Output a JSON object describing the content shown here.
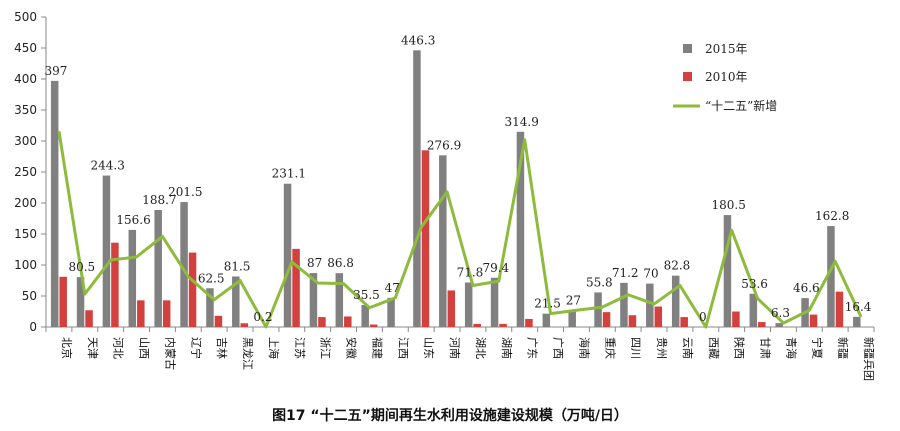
{
  "caption": "图17 “十二五”期间再生水利用设施建设规模（万吨/日）",
  "chart_data": {
    "type": "bar",
    "title": "图17 “十二五”期间再生水利用设施建设规模（万吨/日）",
    "xlabel": "",
    "ylabel": "",
    "ylim": [
      0,
      500
    ],
    "yticks": [
      0,
      50,
      100,
      150,
      200,
      250,
      300,
      350,
      400,
      450,
      500
    ],
    "grid": false,
    "legend": "top-right",
    "categories": [
      "北京",
      "天津",
      "河北",
      "山西",
      "内蒙古",
      "辽宁",
      "吉林",
      "黑龙江",
      "上海",
      "江苏",
      "浙江",
      "安徽",
      "福建",
      "江西",
      "山东",
      "河南",
      "湖北",
      "湖南",
      "广东",
      "广西",
      "海南",
      "重庆",
      "四川",
      "贵州",
      "云南",
      "西藏",
      "陕西",
      "甘肃",
      "青海",
      "宁夏",
      "新疆",
      "新疆兵团"
    ],
    "series": [
      {
        "name": "2015年",
        "type": "bar",
        "color": "#808080",
        "values": [
          397,
          80.5,
          244.3,
          156.6,
          188.7,
          201.5,
          62.5,
          81.5,
          0.2,
          231.1,
          87,
          86.8,
          35.5,
          47,
          446.3,
          276.9,
          71.8,
          79.4,
          314.9,
          21.5,
          27,
          55.8,
          71.2,
          70,
          82.8,
          0,
          180.5,
          53.6,
          6.3,
          46.6,
          162.8,
          16.4
        ],
        "labels": [
          "397",
          "80.5",
          "244.3",
          "156.6",
          "188.7",
          "201.5",
          "62.5",
          "81.5",
          "0.2",
          "231.1",
          "87",
          "86.8",
          "35.5",
          "47",
          "446.3",
          "276.9",
          "71.8",
          "79.4",
          "314.9",
          "21.5",
          "27",
          "55.8",
          "71.2",
          "70",
          "82.8",
          "0",
          "180.5",
          "53.6",
          "6.3",
          "46.6",
          "162.8",
          "16.4"
        ]
      },
      {
        "name": "2010年",
        "type": "bar",
        "color": "#d2413d",
        "values": [
          81,
          27,
          136,
          43,
          43,
          120,
          18,
          6,
          0,
          126,
          16,
          17,
          4,
          0,
          285,
          59,
          5,
          5,
          13,
          0,
          0,
          24,
          19,
          33,
          16,
          0,
          25,
          8,
          0,
          20,
          57,
          0
        ]
      },
      {
        "name": "“十二五”新增",
        "type": "line",
        "color": "#8dbb3c",
        "values": [
          316,
          53,
          108,
          113,
          146,
          81,
          44,
          75,
          0.2,
          105,
          71,
          70,
          31,
          47,
          161,
          218,
          67,
          74,
          302,
          21.5,
          27,
          32,
          52,
          37,
          67,
          0,
          156,
          46,
          6.3,
          27,
          106,
          16.4
        ]
      }
    ]
  }
}
